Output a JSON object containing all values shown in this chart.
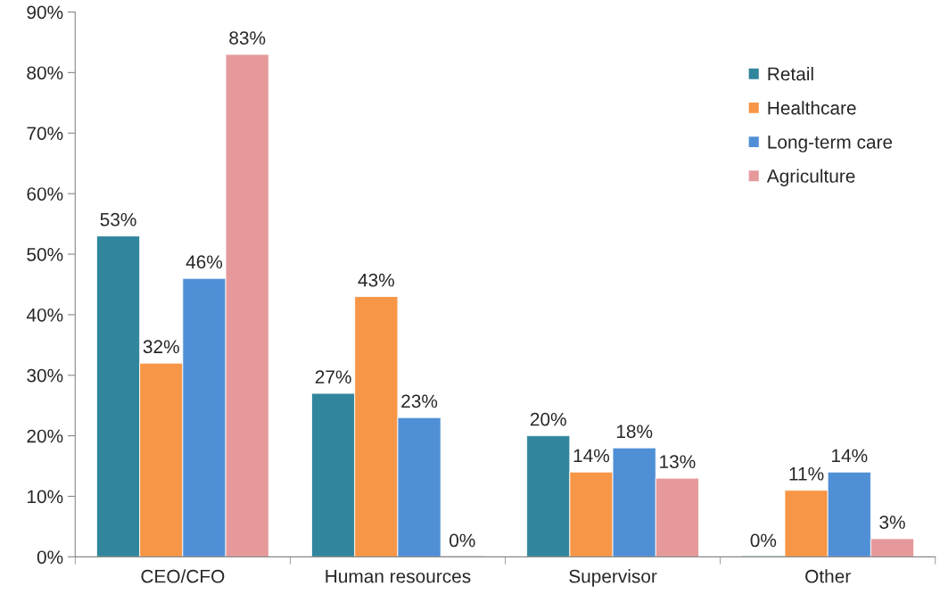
{
  "chart_data": {
    "type": "bar",
    "categories": [
      "CEO/CFO",
      "Human resources",
      "Supervisor",
      "Other"
    ],
    "series": [
      {
        "name": "Retail",
        "color": "#31859c",
        "values": [
          53,
          27,
          20,
          0
        ],
        "value_labels": [
          "53%",
          "27%",
          "20%",
          "0%"
        ]
      },
      {
        "name": "Healthcare",
        "color": "#f79646",
        "values": [
          32,
          43,
          14,
          11
        ],
        "value_labels": [
          "32%",
          "43%",
          "14%",
          "11%"
        ]
      },
      {
        "name": "Long-term care",
        "color": "#4f8fd6",
        "values": [
          46,
          23,
          18,
          14
        ],
        "value_labels": [
          "46%",
          "23%",
          "18%",
          "14%"
        ]
      },
      {
        "name": "Agriculture",
        "color": "#e6999b",
        "values": [
          83,
          0,
          13,
          3
        ],
        "value_labels": [
          "83%",
          "0%",
          "13%",
          "3%"
        ]
      }
    ],
    "ylim": [
      0,
      90
    ],
    "yticks": [
      {
        "value": 0,
        "label": "0%"
      },
      {
        "value": 10,
        "label": "10%"
      },
      {
        "value": 20,
        "label": "20%"
      },
      {
        "value": 30,
        "label": "30%"
      },
      {
        "value": 40,
        "label": "40%"
      },
      {
        "value": 50,
        "label": "50%"
      },
      {
        "value": 60,
        "label": "60%"
      },
      {
        "value": 70,
        "label": "70%"
      },
      {
        "value": 80,
        "label": "80%"
      },
      {
        "value": 90,
        "label": "90%"
      }
    ],
    "grid": false,
    "legend": "top right"
  }
}
